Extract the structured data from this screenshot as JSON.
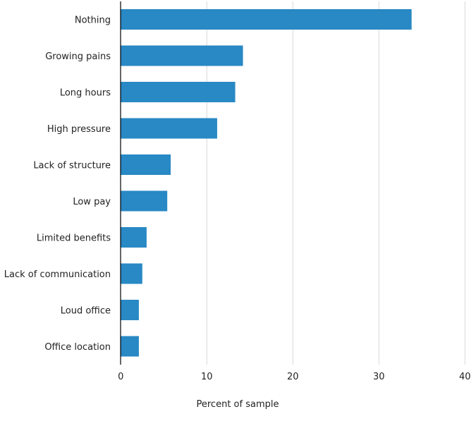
{
  "chart_data": {
    "type": "bar",
    "orientation": "horizontal",
    "categories": [
      "Nothing",
      "Growing pains",
      "Long hours",
      "High pressure",
      "Lack of structure",
      "Low pay",
      "Limited benefits",
      "Lack of communication",
      "Loud office",
      "Office location"
    ],
    "values": [
      33.8,
      14.2,
      13.3,
      11.2,
      5.8,
      5.4,
      3.0,
      2.5,
      2.1,
      2.1
    ],
    "title": "",
    "xlabel": "Percent of sample",
    "ylabel": "",
    "xlim": [
      0,
      40
    ],
    "xticks": [
      0,
      10,
      20,
      30,
      40
    ],
    "grid": true,
    "bar_color": "#2889c4",
    "grid_color": "#d9d9d9"
  }
}
